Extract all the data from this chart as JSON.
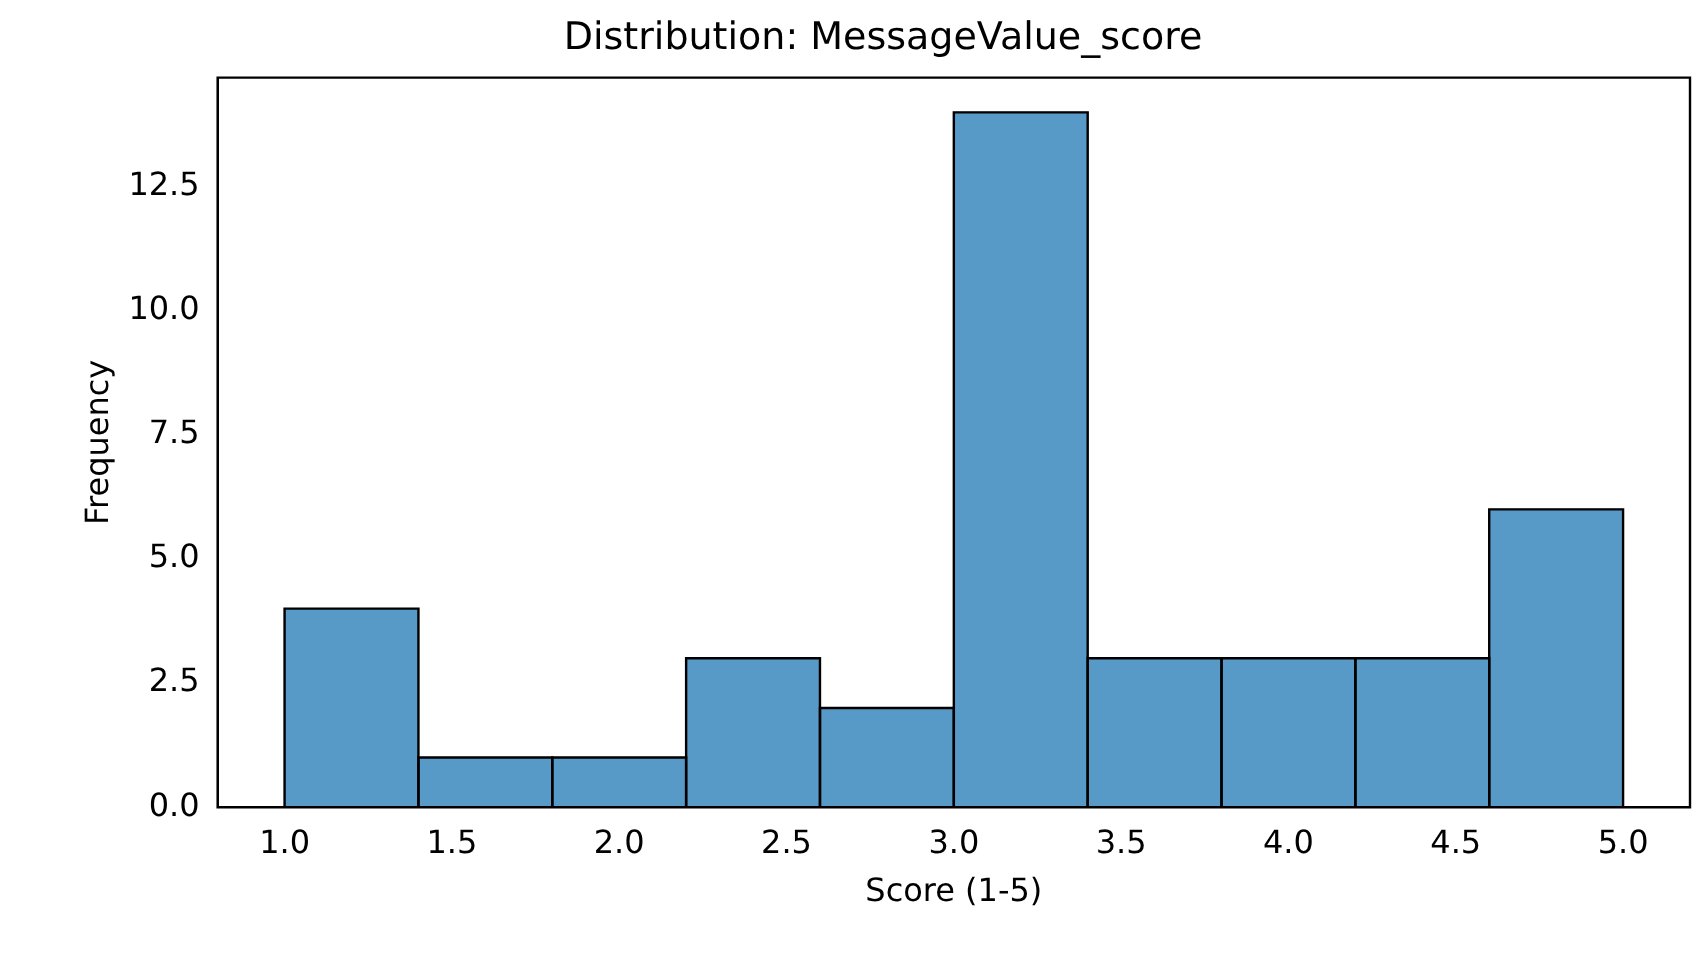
{
  "chart_data": {
    "type": "histogram",
    "title": "Distribution: MessageValue_score",
    "xlabel": "Score (1-5)",
    "ylabel": "Frequency",
    "bins": [
      1.0,
      1.4,
      1.8,
      2.2,
      2.6,
      3.0,
      3.4,
      3.8,
      4.2,
      4.6,
      5.0
    ],
    "values": [
      4,
      1,
      1,
      3,
      2,
      14,
      3,
      3,
      3,
      6
    ],
    "color": "#5799c7",
    "xlim": [
      0.8,
      5.2
    ],
    "xticks": [
      {
        "value": 1,
        "label": "1.0"
      },
      {
        "value": 1.5,
        "label": "1.5"
      },
      {
        "value": 2,
        "label": "2.0"
      },
      {
        "value": 2.5,
        "label": "2.5"
      },
      {
        "value": 3,
        "label": "3.0"
      },
      {
        "value": 3.5,
        "label": "3.5"
      },
      {
        "value": 4,
        "label": "4.0"
      },
      {
        "value": 4.5,
        "label": "4.5"
      },
      {
        "value": 5,
        "label": "5.0"
      }
    ],
    "ylim": [
      0,
      14.7
    ],
    "yticks": [
      {
        "value": 0,
        "label": "0.0"
      },
      {
        "value": 2.5,
        "label": "2.5"
      },
      {
        "value": 5,
        "label": "5.0"
      },
      {
        "value": 7.5,
        "label": "7.5"
      },
      {
        "value": 10,
        "label": "10.0"
      },
      {
        "value": 12.5,
        "label": "12.5"
      }
    ],
    "grid": false,
    "legend": false
  }
}
